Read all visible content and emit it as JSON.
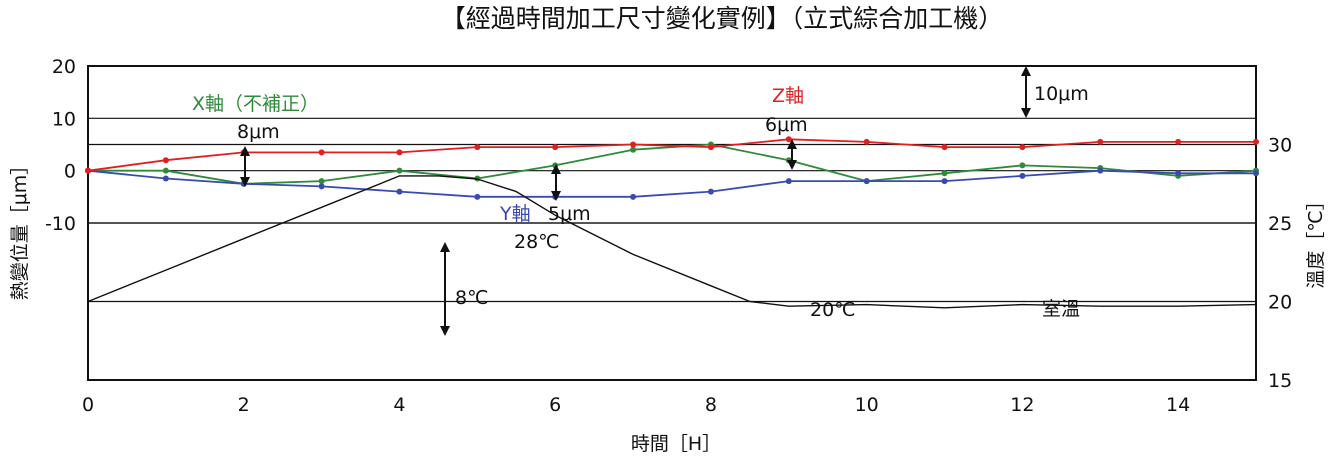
{
  "chart_data": {
    "type": "line",
    "title": "【經過時間加工尺寸變化實例】（立式綜合加工機）",
    "xlabel": "時間［H］",
    "ylabel_left": "熱變位量［μm］",
    "ylabel_right": "溫度［℃］",
    "x_ticks": [
      "0",
      "2",
      "4",
      "6",
      "8",
      "10",
      "12",
      "14"
    ],
    "y_left_ticks": [
      "20",
      "10",
      "0",
      "-10"
    ],
    "y_right_ticks": [
      "30",
      "25",
      "20",
      "15"
    ],
    "xlim": [
      0,
      15
    ],
    "ylim_left": [
      -40,
      20
    ],
    "ylim_right": [
      15,
      35
    ],
    "grid": "horizontal",
    "series": [
      {
        "name": "X軸（不補正）",
        "color": "#2e8b3a",
        "axis": "left",
        "x": [
          0,
          1,
          2,
          3,
          4,
          5,
          6,
          7,
          8,
          9,
          10,
          11,
          12,
          13,
          14,
          15
        ],
        "y": [
          0,
          0,
          -2.5,
          -2,
          0,
          -1.5,
          1,
          4,
          5,
          2,
          -2,
          -0.5,
          1,
          0.5,
          -1,
          0
        ]
      },
      {
        "name": "Y軸",
        "color": "#3a4bb0",
        "axis": "left",
        "x": [
          0,
          1,
          2,
          3,
          4,
          5,
          6,
          7,
          8,
          9,
          10,
          11,
          12,
          13,
          14,
          15
        ],
        "y": [
          0,
          -1.5,
          -2.5,
          -3,
          -4,
          -5,
          -5,
          -5,
          -4,
          -2,
          -2,
          -2,
          -1,
          0,
          -0.5,
          -0.5
        ]
      },
      {
        "name": "Z軸",
        "color": "#e02020",
        "axis": "left",
        "x": [
          0,
          1,
          2,
          3,
          4,
          5,
          6,
          7,
          8,
          9,
          10,
          11,
          12,
          13,
          14,
          15
        ],
        "y": [
          0,
          2,
          3.5,
          3.5,
          3.5,
          4.5,
          4.5,
          5,
          4.5,
          6,
          5.5,
          4.5,
          4.5,
          5.5,
          5.5,
          5.5
        ]
      },
      {
        "name": "室溫",
        "color": "#111111",
        "axis": "right",
        "x": [
          0,
          1,
          2,
          3,
          4,
          4.5,
          5,
          5.5,
          6,
          7,
          8,
          8.5,
          9,
          10,
          11,
          12,
          13,
          14,
          15
        ],
        "y": [
          20,
          22,
          24,
          26,
          28,
          28,
          27.8,
          27,
          25.5,
          23,
          21,
          20,
          19.7,
          19.8,
          19.6,
          19.8,
          19.7,
          19.7,
          19.8
        ]
      }
    ],
    "annotations": {
      "ten_um": "10μm",
      "x_delta": "8μm",
      "z_delta": "6μm",
      "y_delta": "5μm",
      "temp_max": "28℃",
      "temp_delta": "8℃",
      "temp_min": "20℃"
    }
  }
}
